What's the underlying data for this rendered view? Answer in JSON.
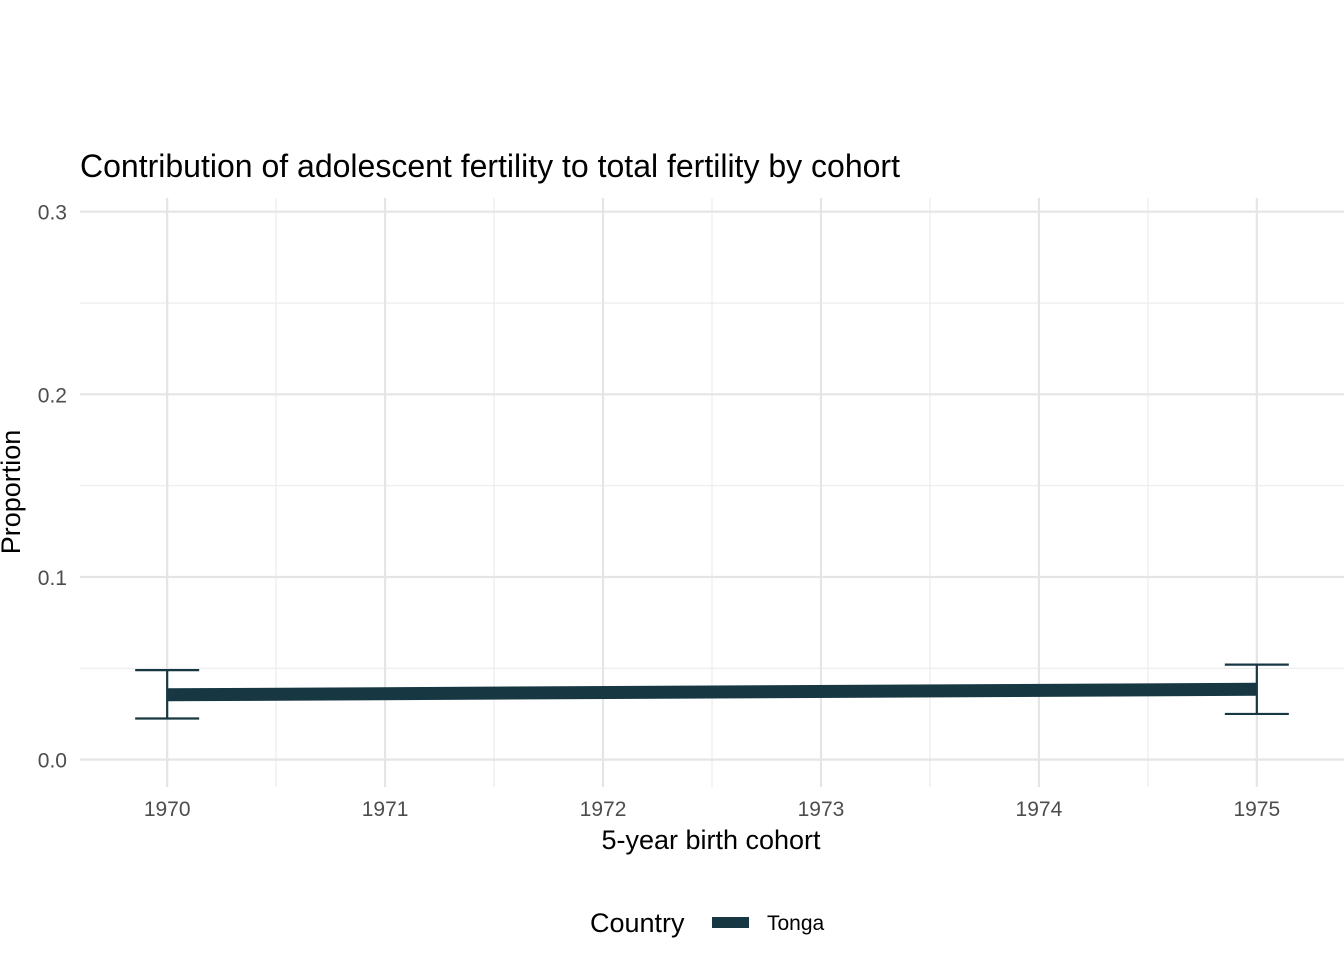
{
  "chart_data": {
    "type": "line",
    "title": "Contribution of adolescent fertility to total fertility by cohort",
    "xlabel": "5-year birth cohort",
    "ylabel": "Proportion",
    "xlim": [
      1969.6,
      1975.4
    ],
    "ylim": [
      -0.015,
      0.3075
    ],
    "x_ticks": [
      1970,
      1971,
      1972,
      1973,
      1974,
      1975
    ],
    "y_ticks": [
      0.0,
      0.1,
      0.2,
      0.3
    ],
    "y_tick_labels": [
      "0.0",
      "0.1",
      "0.2",
      "0.3"
    ],
    "grid": true,
    "legend": {
      "title": "Country",
      "position": "bottom"
    },
    "series": [
      {
        "name": "Tonga",
        "color": "#173742",
        "points": [
          {
            "x": 1970,
            "y": 0.0355,
            "ymin": 0.0225,
            "ymax": 0.049
          },
          {
            "x": 1975,
            "y": 0.0385,
            "ymin": 0.025,
            "ymax": 0.052
          }
        ]
      }
    ]
  }
}
